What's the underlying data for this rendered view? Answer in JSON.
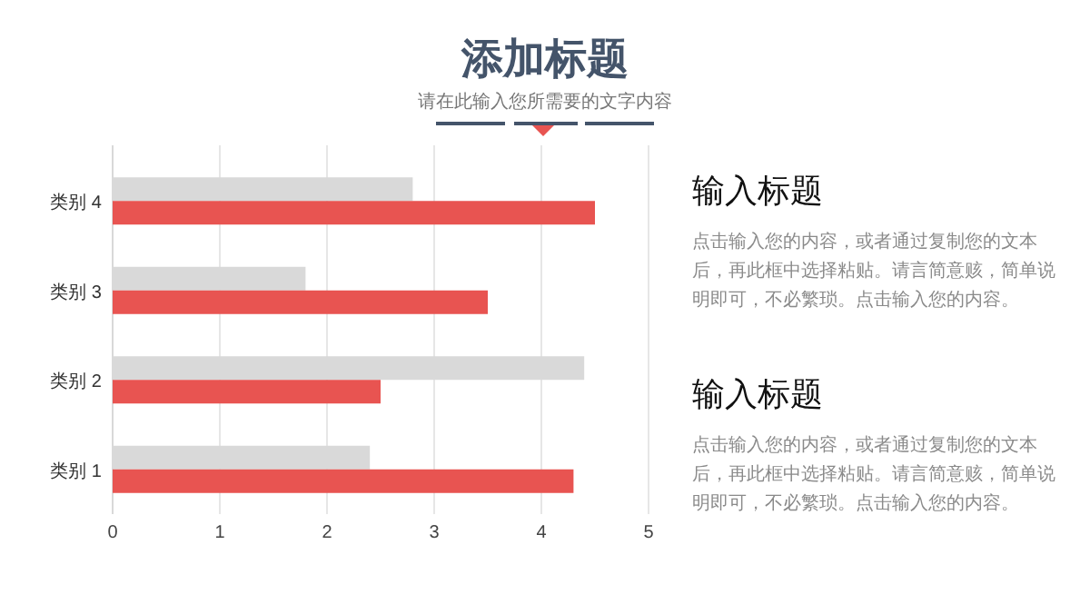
{
  "chart_data": [
    {
      "type": "bar",
      "orientation": "horizontal",
      "title": "添加标题",
      "subtitle": "请在此输入您所需要的文字内容",
      "categories": [
        "类别 4",
        "类别 3",
        "类别 2",
        "类别 1"
      ],
      "series": [
        {
          "color": "#d9d9d9",
          "values": [
            2.8,
            1.8,
            4.4,
            2.4
          ]
        },
        {
          "color": "#e85451",
          "values": [
            4.5,
            3.5,
            2.5,
            4.3
          ]
        }
      ],
      "xlim": [
        0,
        5
      ],
      "xticks": [
        0,
        1,
        2,
        3,
        4,
        5
      ],
      "grid": "x"
    },
    {
      "type": "other",
      "title": "输入标题",
      "annotations": [
        "点击输入您的内容，或者通过复制您的文本后，再此框中选择粘贴。请言简意赅，简单说明即可，不必繁琐。点击输入您的内容。"
      ]
    },
    {
      "type": "other",
      "title": "输入标题",
      "annotations": [
        "点击输入您的内容，或者通过复制您的文本后，再此框中选择粘贴。请言简意赅，简单说明即可，不必繁琐。点击输入您的内容。"
      ]
    }
  ]
}
